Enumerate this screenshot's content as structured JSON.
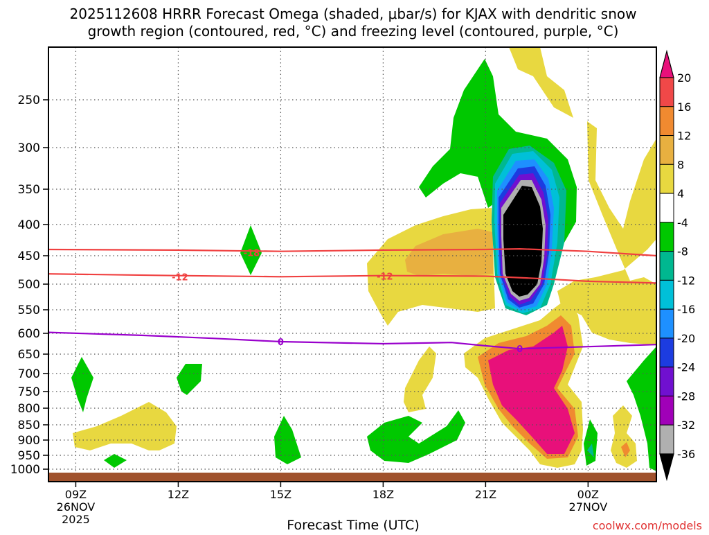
{
  "chart_data": {
    "type": "heatmap",
    "title_line1": "2025112608 HRRR Forecast Omega (shaded, μbar/s) for KJAX with dendritic snow",
    "title_line2": "growth region (contoured, red, °C) and freezing level (contoured, purple, °C)",
    "xlabel": "Forecast Time (UTC)",
    "ylabel": "",
    "credit": "coolwx.com/models",
    "x_ticks": [
      {
        "hour": 9,
        "label": "09Z",
        "sub1": "26NOV",
        "sub2": "2025"
      },
      {
        "hour": 12,
        "label": "12Z",
        "sub1": "",
        "sub2": ""
      },
      {
        "hour": 15,
        "label": "15Z",
        "sub1": "",
        "sub2": ""
      },
      {
        "hour": 18,
        "label": "18Z",
        "sub1": "",
        "sub2": ""
      },
      {
        "hour": 21,
        "label": "21Z",
        "sub1": "",
        "sub2": ""
      },
      {
        "hour": 24,
        "label": "00Z",
        "sub1": "27NOV",
        "sub2": ""
      }
    ],
    "x_range_hours": [
      8.2,
      26.0
    ],
    "y_axis": "pressure (mb), inverted",
    "y_ticks": [
      250,
      300,
      350,
      400,
      450,
      500,
      550,
      600,
      650,
      700,
      750,
      800,
      850,
      900,
      950,
      1000
    ],
    "y_range_mb": [
      205,
      1020
    ],
    "colorbar": {
      "labels": [
        "20",
        "16",
        "12",
        "8",
        "4",
        "-4",
        "-8",
        "-12",
        "-16",
        "-20",
        "-24",
        "-28",
        "-32",
        "-36"
      ],
      "colors": [
        "#e8107a",
        "#f04848",
        "#f08a30",
        "#e8b040",
        "#e8d840",
        "#ffffff",
        "#00c800",
        "#00b890",
        "#00c0d8",
        "#1e90ff",
        "#1c3ce0",
        "#7010d0",
        "#a000b8",
        "#b0b0b0",
        "#000000"
      ]
    },
    "contours": [
      {
        "name": "-18",
        "color": "#f04040",
        "points": [
          [
            8.2,
            440
          ],
          [
            12,
            441
          ],
          [
            15,
            443
          ],
          [
            18,
            441
          ],
          [
            21,
            440
          ],
          [
            22,
            439
          ],
          [
            24,
            443
          ],
          [
            26,
            450
          ]
        ]
      },
      {
        "name": "-12",
        "color": "#f04040",
        "points": [
          [
            8.2,
            482
          ],
          [
            12,
            485
          ],
          [
            15,
            487
          ],
          [
            18,
            485
          ],
          [
            21,
            486
          ],
          [
            22.5,
            490
          ],
          [
            24,
            495
          ],
          [
            26,
            498
          ]
        ]
      },
      {
        "name": "0",
        "color": "#9900cc",
        "points": [
          [
            8.2,
            598
          ],
          [
            11,
            605
          ],
          [
            13,
            612
          ],
          [
            15,
            620
          ],
          [
            18,
            625
          ],
          [
            20,
            622
          ],
          [
            21,
            630
          ],
          [
            22,
            637
          ],
          [
            24,
            632
          ],
          [
            26,
            627
          ]
        ]
      }
    ],
    "contour_labels": [
      {
        "text": "-18",
        "hour": 14.15,
        "mb": 445
      },
      {
        "text": "-12",
        "hour": 12.05,
        "mb": 487
      },
      {
        "text": "-12",
        "hour": 18.05,
        "mb": 486
      },
      {
        "text": "0",
        "hour": 15.0,
        "mb": 620
      },
      {
        "text": "0",
        "hour": 22.0,
        "mb": 637
      }
    ]
  }
}
